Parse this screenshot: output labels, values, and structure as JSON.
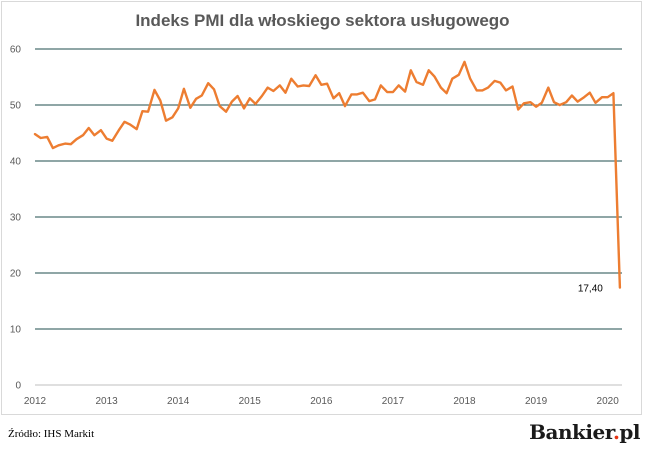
{
  "colors": {
    "line": "#ED7D31",
    "grid": "#1f4e4e",
    "text": "#595959"
  },
  "footer": {
    "source": "Źródło: IHS Markit",
    "brand_name": "Bankier",
    "brand_dot": ".",
    "brand_tld": "pl"
  },
  "chart_data": {
    "type": "line",
    "title": "Indeks PMI dla włoskiego sektora usługowego",
    "xlabel": "",
    "ylabel": "",
    "ylim": [
      0,
      60
    ],
    "yticks": [
      0,
      10,
      20,
      30,
      40,
      50,
      60
    ],
    "xlim": [
      2012,
      2020.2
    ],
    "xticks": [
      "2012",
      "2013",
      "2014",
      "2015",
      "2016",
      "2017",
      "2018",
      "2019",
      "2020"
    ],
    "grid": true,
    "legend": "none",
    "annotation": {
      "text": "17,40",
      "x": 2020.17,
      "y": 17.4
    },
    "series": [
      {
        "color": "#ED7D31",
        "x": [
          2012.0,
          2012.08,
          2012.17,
          2012.25,
          2012.33,
          2012.42,
          2012.5,
          2012.58,
          2012.67,
          2012.75,
          2012.83,
          2012.92,
          2013.0,
          2013.08,
          2013.17,
          2013.25,
          2013.33,
          2013.42,
          2013.5,
          2013.58,
          2013.67,
          2013.75,
          2013.83,
          2013.92,
          2014.0,
          2014.08,
          2014.17,
          2014.25,
          2014.33,
          2014.42,
          2014.5,
          2014.58,
          2014.67,
          2014.75,
          2014.83,
          2014.92,
          2015.0,
          2015.08,
          2015.17,
          2015.25,
          2015.33,
          2015.42,
          2015.5,
          2015.58,
          2015.67,
          2015.75,
          2015.83,
          2015.92,
          2016.0,
          2016.08,
          2016.17,
          2016.25,
          2016.33,
          2016.42,
          2016.5,
          2016.58,
          2016.67,
          2016.75,
          2016.83,
          2016.92,
          2017.0,
          2017.08,
          2017.17,
          2017.25,
          2017.33,
          2017.42,
          2017.5,
          2017.58,
          2017.67,
          2017.75,
          2017.83,
          2017.92,
          2018.0,
          2018.08,
          2018.17,
          2018.25,
          2018.33,
          2018.42,
          2018.5,
          2018.58,
          2018.67,
          2018.75,
          2018.83,
          2018.92,
          2019.0,
          2019.08,
          2019.17,
          2019.25,
          2019.33,
          2019.42,
          2019.5,
          2019.58,
          2019.67,
          2019.75,
          2019.83,
          2019.92,
          2020.0,
          2020.08,
          2020.17
        ],
        "y": [
          44.8,
          44.1,
          44.3,
          42.3,
          42.8,
          43.1,
          43.0,
          43.9,
          44.6,
          45.9,
          44.6,
          45.5,
          44.0,
          43.6,
          45.5,
          47.0,
          46.5,
          45.7,
          48.9,
          48.8,
          52.7,
          50.8,
          47.2,
          47.8,
          49.4,
          52.9,
          49.5,
          51.1,
          51.7,
          53.9,
          52.8,
          49.8,
          48.8,
          50.6,
          51.6,
          49.4,
          51.2,
          50.2,
          51.6,
          53.1,
          52.5,
          53.5,
          52.2,
          54.7,
          53.3,
          53.5,
          53.4,
          55.3,
          53.6,
          53.8,
          51.2,
          52.1,
          49.8,
          51.9,
          51.9,
          52.2,
          50.7,
          51.0,
          53.5,
          52.3,
          52.3,
          53.5,
          52.4,
          56.2,
          54.1,
          53.6,
          56.2,
          55.1,
          53.1,
          52.1,
          54.7,
          55.4,
          57.7,
          54.7,
          52.6,
          52.6,
          53.1,
          54.3,
          54.0,
          52.6,
          53.3,
          49.2,
          50.3,
          50.5,
          49.7,
          50.4,
          53.1,
          50.5,
          50.0,
          50.5,
          51.7,
          50.6,
          51.4,
          52.2,
          50.4,
          51.4,
          51.4,
          52.1,
          17.4
        ]
      }
    ]
  }
}
